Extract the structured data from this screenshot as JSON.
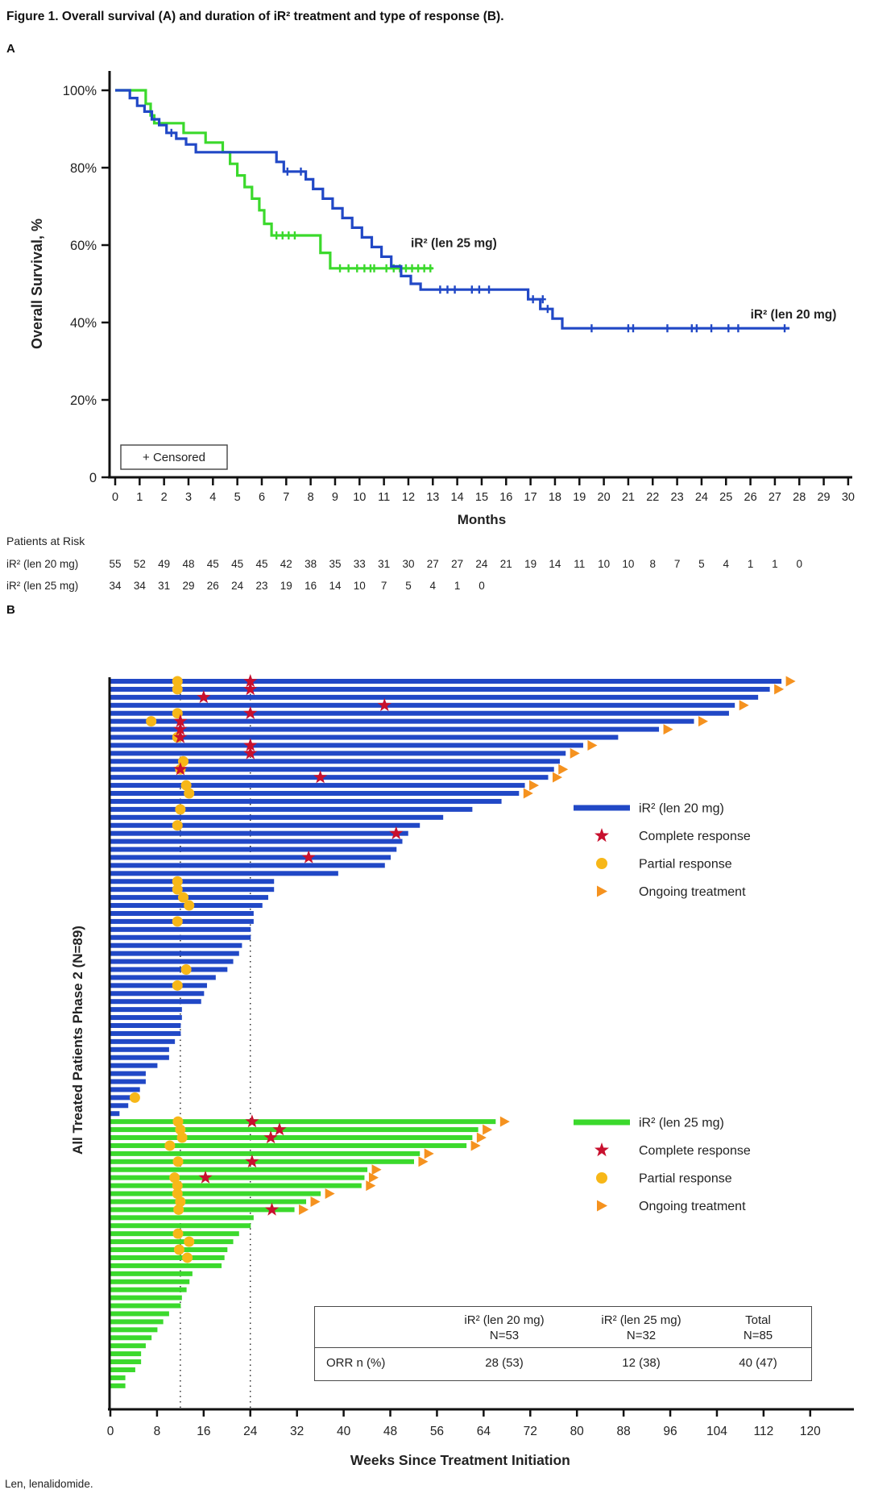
{
  "figure": {
    "title": "Figure 1. Overall survival (A) and duration of iR² treatment and type of response (B).",
    "panel_a_label": "A",
    "panel_b_label": "B",
    "footnote": "Len, lenalidomide."
  },
  "colors": {
    "blue": "#2148c6",
    "green": "#3bd92c",
    "red": "#c8102e",
    "yellow": "#f7b718",
    "orange": "#f5921f",
    "axis": "#111111",
    "text": "#222222"
  },
  "chart_data": [
    {
      "type": "line",
      "subtype": "kaplan-meier",
      "title": "Overall survival (A)",
      "xlabel": "Months",
      "ylabel": "Overall Survival, %",
      "xlim": [
        0,
        30
      ],
      "xticks": [
        0,
        1,
        2,
        3,
        4,
        5,
        6,
        7,
        8,
        9,
        10,
        11,
        12,
        13,
        14,
        15,
        16,
        17,
        18,
        19,
        20,
        21,
        22,
        23,
        24,
        25,
        26,
        27,
        28,
        29,
        30
      ],
      "yticks": [
        [
          0,
          "0"
        ],
        [
          20,
          "20%"
        ],
        [
          40,
          "40%"
        ],
        [
          60,
          "60%"
        ],
        [
          80,
          "80%"
        ],
        [
          100,
          "100%"
        ]
      ],
      "censored_legend": "+ Censored",
      "series": [
        {
          "name": "iR² (len 20 mg)",
          "color_key": "blue",
          "label_pos": {
            "month": 26.0,
            "pct": 41
          },
          "steps": [
            [
              0,
              100
            ],
            [
              0.6,
              98
            ],
            [
              0.9,
              96
            ],
            [
              1.2,
              94.5
            ],
            [
              1.5,
              92.5
            ],
            [
              1.8,
              91
            ],
            [
              2.1,
              89
            ],
            [
              2.5,
              87.5
            ],
            [
              2.9,
              86
            ],
            [
              3.3,
              84
            ],
            [
              6.6,
              81.5
            ],
            [
              6.9,
              79
            ],
            [
              7.8,
              77
            ],
            [
              8.1,
              74.5
            ],
            [
              8.5,
              72
            ],
            [
              8.9,
              69.5
            ],
            [
              9.3,
              67
            ],
            [
              9.7,
              64.5
            ],
            [
              10.1,
              62
            ],
            [
              10.5,
              59.5
            ],
            [
              10.9,
              57
            ],
            [
              11.3,
              54.5
            ],
            [
              11.7,
              52
            ],
            [
              12.1,
              50
            ],
            [
              12.5,
              48.5
            ],
            [
              16.9,
              46
            ],
            [
              17.4,
              43.5
            ],
            [
              17.9,
              41
            ],
            [
              18.3,
              38.5
            ],
            [
              27.6,
              38.5
            ]
          ],
          "censors": [
            [
              2.3,
              89
            ],
            [
              7.05,
              79
            ],
            [
              7.6,
              79
            ],
            [
              13.3,
              48.5
            ],
            [
              13.6,
              48.5
            ],
            [
              13.9,
              48.5
            ],
            [
              14.6,
              48.5
            ],
            [
              14.9,
              48.5
            ],
            [
              15.3,
              48.5
            ],
            [
              17.1,
              46
            ],
            [
              17.5,
              46
            ],
            [
              17.7,
              43.5
            ],
            [
              19.5,
              38.5
            ],
            [
              21.0,
              38.5
            ],
            [
              21.2,
              38.5
            ],
            [
              22.6,
              38.5
            ],
            [
              23.6,
              38.5
            ],
            [
              23.8,
              38.5
            ],
            [
              24.4,
              38.5
            ],
            [
              25.1,
              38.5
            ],
            [
              25.5,
              38.5
            ],
            [
              27.4,
              38.5
            ]
          ]
        },
        {
          "name": "iR² (len 25 mg)",
          "color_key": "green",
          "label_pos": {
            "month": 12.1,
            "pct": 59.5
          },
          "steps": [
            [
              0,
              100
            ],
            [
              1.25,
              96.5
            ],
            [
              1.45,
              93.5
            ],
            [
              1.6,
              91.5
            ],
            [
              2.8,
              89
            ],
            [
              3.7,
              86.5
            ],
            [
              4.4,
              84
            ],
            [
              4.7,
              81
            ],
            [
              5.0,
              78
            ],
            [
              5.3,
              75
            ],
            [
              5.6,
              72
            ],
            [
              5.9,
              69
            ],
            [
              6.1,
              65.5
            ],
            [
              6.4,
              62.5
            ],
            [
              8.4,
              58
            ],
            [
              8.8,
              54
            ],
            [
              13.0,
              54
            ]
          ],
          "censors": [
            [
              6.6,
              62.5
            ],
            [
              6.85,
              62.5
            ],
            [
              7.1,
              62.5
            ],
            [
              7.35,
              62.5
            ],
            [
              9.2,
              54
            ],
            [
              9.55,
              54
            ],
            [
              9.9,
              54
            ],
            [
              10.2,
              54
            ],
            [
              10.45,
              54
            ],
            [
              10.6,
              54
            ],
            [
              11.1,
              54
            ],
            [
              11.4,
              54
            ],
            [
              11.65,
              54
            ],
            [
              11.9,
              54
            ],
            [
              12.15,
              54
            ],
            [
              12.4,
              54
            ],
            [
              12.65,
              54
            ],
            [
              12.9,
              54
            ]
          ]
        }
      ],
      "at_risk": {
        "title": "Patients at Risk",
        "rows": [
          {
            "label": "iR² (len 20 mg)",
            "values": [
              55,
              52,
              49,
              48,
              45,
              45,
              45,
              42,
              38,
              35,
              33,
              31,
              30,
              27,
              27,
              24,
              21,
              19,
              14,
              11,
              10,
              10,
              8,
              7,
              5,
              4,
              1,
              1,
              0
            ]
          },
          {
            "label": "iR² (len 25 mg)",
            "values": [
              34,
              34,
              31,
              29,
              26,
              24,
              23,
              19,
              16,
              14,
              10,
              7,
              5,
              4,
              1,
              0
            ]
          }
        ]
      }
    },
    {
      "type": "bar",
      "subtype": "swimmer",
      "title": "Duration of iR² treatment and type of response (B)",
      "xlabel": "Weeks Since Treatment Initiation",
      "ylabel": "All Treated Patients Phase 2 (N=89)",
      "xlim": [
        0,
        120
      ],
      "xticks": [
        0,
        8,
        16,
        24,
        32,
        40,
        48,
        56,
        64,
        72,
        80,
        88,
        96,
        104,
        112,
        120
      ],
      "ref_lines_weeks": [
        12,
        24
      ],
      "legend_item_labels": [
        "Complete response",
        "Partial response",
        "Ongoing treatment"
      ],
      "groups": [
        {
          "name": "iR² (len 20 mg)",
          "color_key": "blue",
          "bars_weeks": [
            115,
            113,
            111,
            107,
            106,
            100,
            94,
            87,
            81,
            78,
            77,
            76,
            75,
            71,
            70,
            67,
            62,
            57,
            53,
            51,
            50,
            49,
            48,
            47,
            39,
            28,
            28,
            27,
            26,
            24.5,
            24.5,
            24,
            24,
            22.5,
            22,
            21,
            20,
            18,
            16.5,
            16,
            15.5,
            12.2,
            12.2,
            12,
            12,
            11,
            10,
            10,
            8,
            6,
            6,
            5,
            4,
            3,
            1.5
          ],
          "complete_response": [
            [
              0,
              24
            ],
            [
              1,
              24
            ],
            [
              2,
              16
            ],
            [
              3,
              47
            ],
            [
              4,
              24
            ],
            [
              5,
              12
            ],
            [
              6,
              12
            ],
            [
              7,
              12
            ],
            [
              8,
              24
            ],
            [
              9,
              24
            ],
            [
              11,
              12
            ],
            [
              12,
              36
            ],
            [
              19,
              49
            ],
            [
              22,
              34
            ]
          ],
          "partial_response": [
            [
              0,
              11.5
            ],
            [
              1,
              11.5
            ],
            [
              4,
              11.5
            ],
            [
              5,
              7
            ],
            [
              7,
              11.5
            ],
            [
              10,
              12.5
            ],
            [
              11,
              12
            ],
            [
              13,
              13
            ],
            [
              14,
              13.5
            ],
            [
              16,
              12
            ],
            [
              18,
              11.5
            ],
            [
              25,
              11.5
            ],
            [
              26,
              11.5
            ],
            [
              27,
              12.5
            ],
            [
              28,
              13.5
            ],
            [
              30,
              11.5
            ],
            [
              36,
              13
            ],
            [
              38,
              11.5
            ],
            [
              52,
              4.2
            ]
          ],
          "ongoing_rows": [
            0,
            1,
            3,
            5,
            6,
            8,
            9,
            11,
            12,
            13,
            14
          ]
        },
        {
          "name": "iR² (len 25 mg)",
          "color_key": "green",
          "bars_weeks": [
            66,
            63,
            62,
            61,
            53,
            52,
            44,
            43.5,
            43,
            36,
            33.5,
            31.5,
            24.5,
            24,
            22,
            21,
            20,
            19.5,
            19,
            14,
            13.5,
            13,
            12.2,
            12,
            10,
            9,
            8,
            7,
            6,
            5.2,
            5.2,
            4.2,
            2.5,
            2.5
          ],
          "complete_response": [
            [
              0,
              24.3
            ],
            [
              1,
              29
            ],
            [
              2,
              27.5
            ],
            [
              5,
              24.3
            ],
            [
              7,
              16.3
            ],
            [
              11,
              27.7
            ]
          ],
          "partial_response": [
            [
              0,
              11.6
            ],
            [
              1,
              12
            ],
            [
              2,
              12.3
            ],
            [
              3,
              10.2
            ],
            [
              5,
              11.6
            ],
            [
              7,
              11
            ],
            [
              8,
              11.5
            ],
            [
              9,
              11.5
            ],
            [
              10,
              12
            ],
            [
              11,
              11.7
            ],
            [
              14,
              11.6
            ],
            [
              15,
              13.5
            ],
            [
              16,
              11.8
            ],
            [
              17,
              13.2
            ]
          ],
          "ongoing_rows": [
            0,
            1,
            2,
            3,
            4,
            5,
            6,
            7,
            8,
            9,
            10,
            11
          ]
        }
      ],
      "orr_table": {
        "row_header": "ORR n (%)",
        "columns": [
          {
            "h1": "iR² (len 20 mg)",
            "h2": "N=53"
          },
          {
            "h1": "iR² (len 25 mg)",
            "h2": "N=32"
          },
          {
            "h1": "Total",
            "h2": "N=85"
          }
        ],
        "values": [
          "28 (53)",
          "12 (38)",
          "40 (47)"
        ]
      }
    }
  ]
}
